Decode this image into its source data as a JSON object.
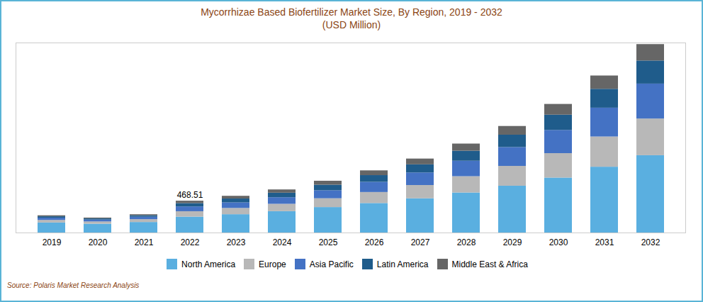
{
  "chart_data": {
    "type": "bar",
    "stacked": true,
    "title": "Mycorrhizae Based Biofertilizer Market Size, By Region, 2019 - 2032",
    "subtitle": "(USD Million)",
    "caption": "Source: Polaris  Market Research Analysis",
    "categories": [
      "2019",
      "2020",
      "2021",
      "2022",
      "2023",
      "2024",
      "2025",
      "2026",
      "2027",
      "2028",
      "2029",
      "2030",
      "2031",
      "2032"
    ],
    "series": [
      {
        "name": "North America",
        "color": "#5aafe0",
        "values": [
          148,
          130,
          155,
          234,
          270,
          315,
          375,
          435,
          505,
          590,
          690,
          810,
          970,
          1140
        ]
      },
      {
        "name": "Europe",
        "color": "#b8b8b8",
        "values": [
          38,
          33,
          42,
          80,
          92,
          108,
          130,
          162,
          195,
          240,
          292,
          360,
          445,
          540
        ]
      },
      {
        "name": "Asia Pacific",
        "color": "#4472c4",
        "values": [
          33,
          28,
          36,
          70,
          82,
          97,
          118,
          150,
          185,
          228,
          278,
          342,
          425,
          515
        ]
      },
      {
        "name": "Latin America",
        "color": "#1f5c8b",
        "values": [
          20,
          17,
          22,
          50,
          57,
          67,
          82,
          99,
          120,
          148,
          182,
          225,
          278,
          340
        ]
      },
      {
        "name": "Middle East & Africa",
        "color": "#666666",
        "values": [
          15,
          12,
          15,
          35,
          40,
          48,
          58,
          70,
          85,
          105,
          128,
          158,
          196,
          242
        ]
      }
    ],
    "ylim": [
      0,
      2800
    ],
    "yticks": [],
    "tick_labels": "x",
    "grid": false,
    "legend": "bottom",
    "annotations": [
      {
        "text": "468.51",
        "category": "2022"
      }
    ]
  }
}
